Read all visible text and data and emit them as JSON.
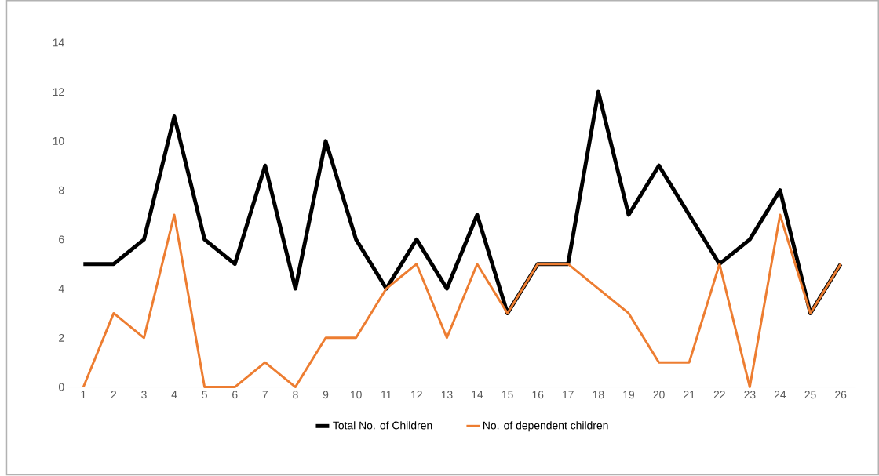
{
  "chart_data": {
    "type": "line",
    "categories": [
      "1",
      "2",
      "3",
      "4",
      "5",
      "6",
      "7",
      "8",
      "9",
      "10",
      "11",
      "12",
      "13",
      "14",
      "15",
      "16",
      "17",
      "18",
      "19",
      "20",
      "21",
      "22",
      "23",
      "24",
      "25",
      "26"
    ],
    "series": [
      {
        "name": "Total No. of Children",
        "color": "#000000",
        "values": [
          5,
          5,
          6,
          11,
          6,
          5,
          9,
          4,
          10,
          6,
          4,
          6,
          4,
          7,
          3,
          5,
          5,
          12,
          7,
          9,
          7,
          5,
          6,
          8,
          3,
          5
        ]
      },
      {
        "name": "No. of dependent children",
        "color": "#ed7d31",
        "values": [
          0,
          3,
          2,
          7,
          0,
          0,
          1,
          0,
          2,
          2,
          4,
          5,
          2,
          5,
          3,
          5,
          5,
          4,
          3,
          1,
          1,
          5,
          0,
          7,
          3,
          5
        ]
      }
    ],
    "ylim": [
      0,
      14
    ],
    "yticks": [
      0,
      2,
      4,
      6,
      8,
      10,
      12,
      14
    ],
    "legend": "bottom",
    "marker": "none",
    "line_style": "solid"
  }
}
